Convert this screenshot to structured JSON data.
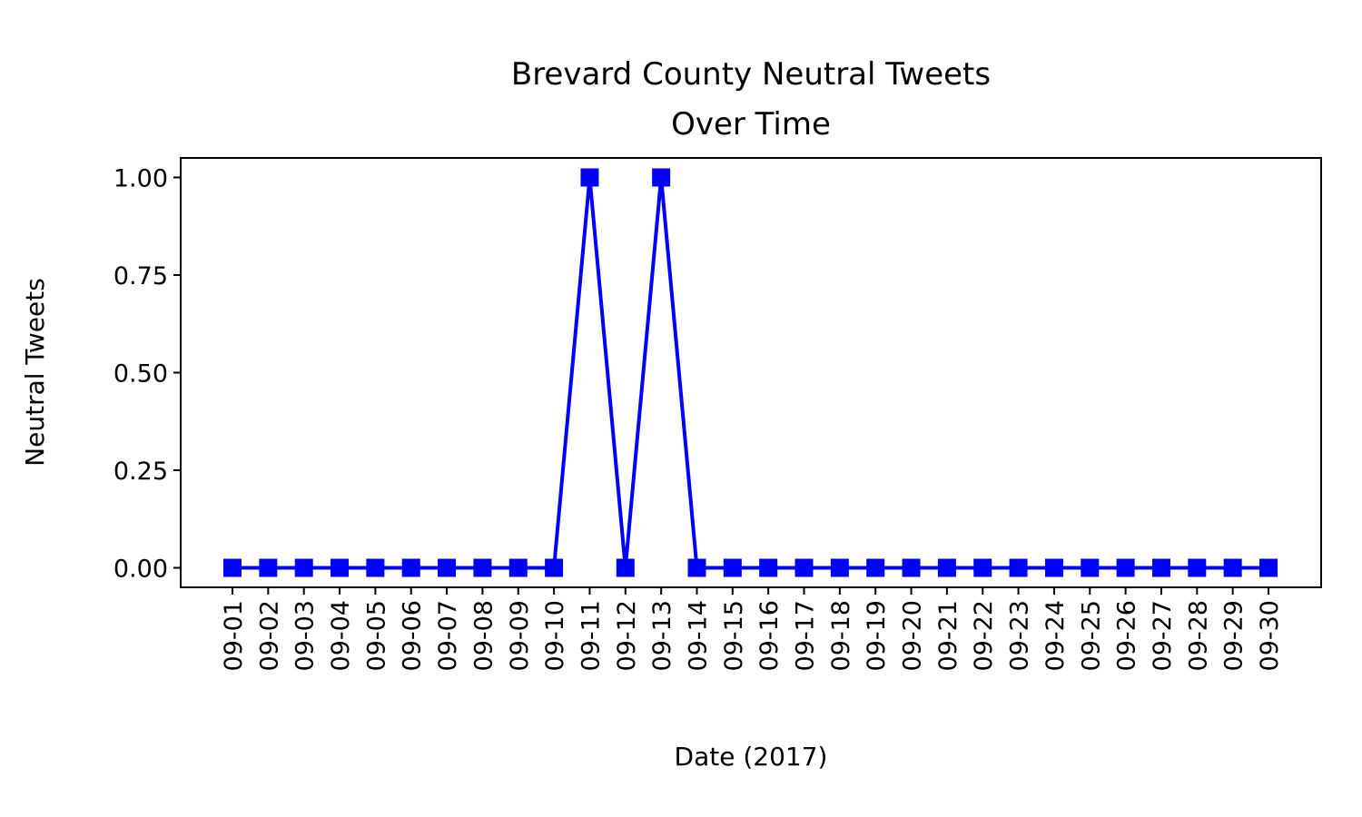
{
  "chart_data": {
    "type": "line",
    "title_line1": "Brevard County Neutral Tweets",
    "title_line2": "Over Time",
    "xlabel": "Date (2017)",
    "ylabel": "Neutral Tweets",
    "ylabel_color": "#0000ff",
    "series_color": "#0000ff",
    "marker": "square",
    "ylim": [
      -0.05,
      1.05
    ],
    "yticks": [
      0.0,
      0.25,
      0.5,
      0.75,
      1.0
    ],
    "ytick_labels": [
      "0.00",
      "0.25",
      "0.50",
      "0.75",
      "1.00"
    ],
    "categories": [
      "09-01",
      "09-02",
      "09-03",
      "09-04",
      "09-05",
      "09-06",
      "09-07",
      "09-08",
      "09-09",
      "09-10",
      "09-11",
      "09-12",
      "09-13",
      "09-14",
      "09-15",
      "09-16",
      "09-17",
      "09-18",
      "09-19",
      "09-20",
      "09-21",
      "09-22",
      "09-23",
      "09-24",
      "09-25",
      "09-26",
      "09-27",
      "09-28",
      "09-29",
      "09-30"
    ],
    "series": [
      {
        "values": [
          0,
          0,
          0,
          0,
          0,
          0,
          0,
          0,
          0,
          0,
          1,
          0,
          1,
          0,
          0,
          0,
          0,
          0,
          0,
          0,
          0,
          0,
          0,
          0,
          0,
          0,
          0,
          0,
          0,
          0
        ]
      }
    ],
    "grid": false,
    "legend": "none"
  }
}
